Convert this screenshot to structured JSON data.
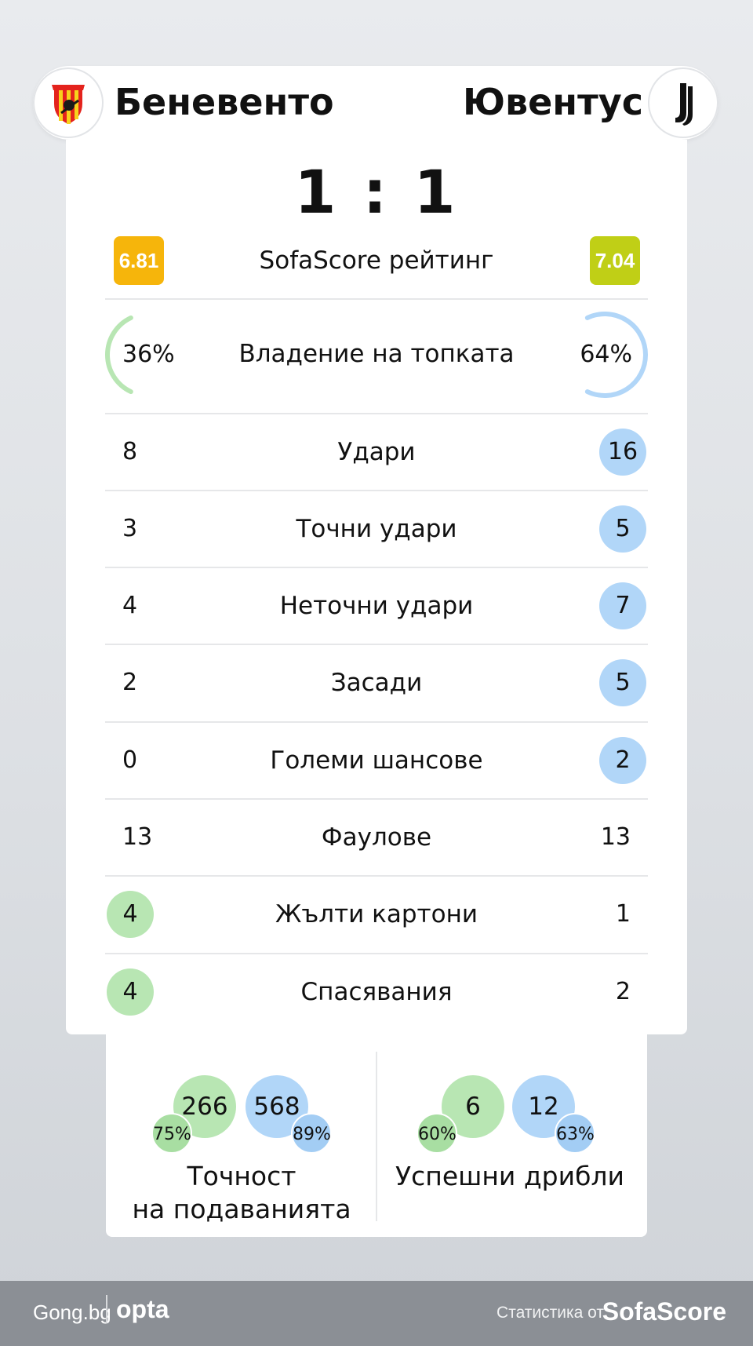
{
  "home": {
    "name": "Беневенто",
    "rating": "6.81",
    "rating_color": "#f6b50b",
    "possession": "36%",
    "possession_fraction": 0.36,
    "possession_color": "#b8e6b3"
  },
  "away": {
    "name": "Ювентус",
    "rating": "7.04",
    "rating_color": "#c0cf16",
    "possession": "64%",
    "possession_fraction": 0.64,
    "possession_color": "#b1d6f8"
  },
  "score": "1 : 1",
  "rating_label": "SofaScore рейтинг",
  "possession_label": "Владение на топката",
  "stats": [
    {
      "label": "Удари",
      "home": "8",
      "away": "16"
    },
    {
      "label": "Точни удари",
      "home": "3",
      "away": "5"
    },
    {
      "label": "Неточни удари",
      "home": "4",
      "away": "7"
    },
    {
      "label": "Засади",
      "home": "2",
      "away": "5"
    },
    {
      "label": "Големи шансове",
      "home": "0",
      "away": "2"
    },
    {
      "label": "Фаулове",
      "home": "13",
      "away": "13"
    },
    {
      "label": "Жълти картони",
      "home": "4",
      "away": "1"
    },
    {
      "label": "Спасявания",
      "home": "4",
      "away": "2"
    }
  ],
  "passing": {
    "label_line1": "Точност",
    "label_line2": "на подаванията",
    "home_value": "266",
    "home_pct": "75%",
    "away_value": "568",
    "away_pct": "89%"
  },
  "dribbles": {
    "label": "Успешни дрибли",
    "home_value": "6",
    "home_pct": "60%",
    "away_value": "12",
    "away_pct": "63%"
  },
  "footer": {
    "gong": "Gong.bg",
    "opta": "opta",
    "stats_by": "Статистика от",
    "sofascore": "SofaScore"
  },
  "icons": {
    "home_logo": "benevento-crest-icon",
    "away_logo": "juventus-logo-icon"
  }
}
